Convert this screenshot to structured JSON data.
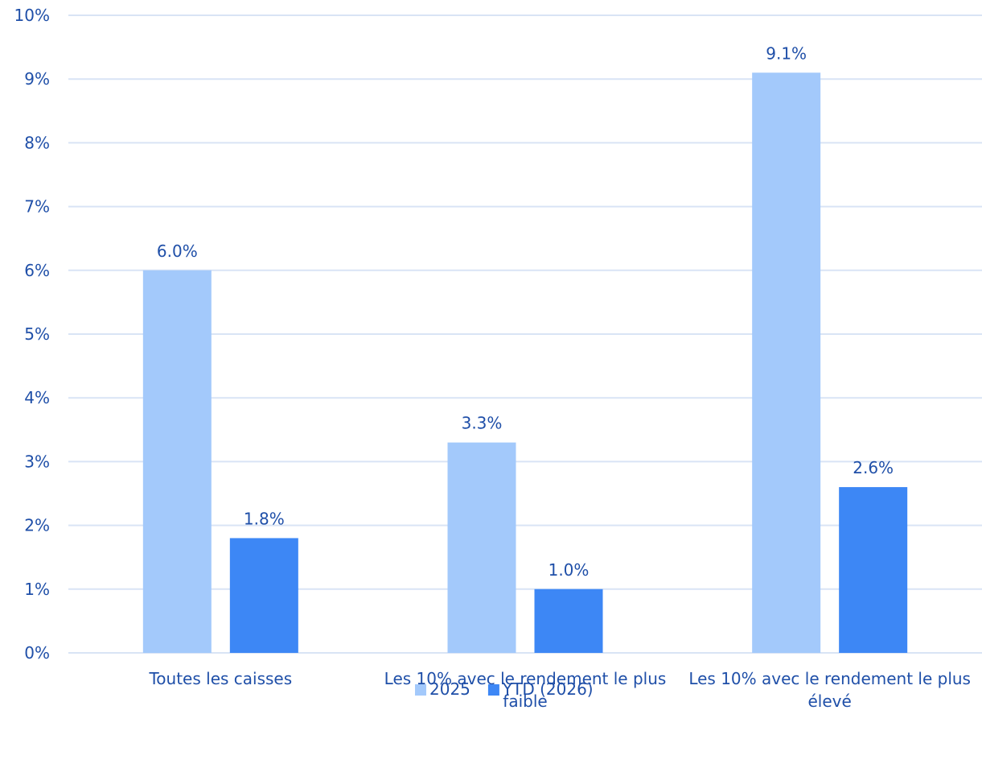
{
  "chart_data": {
    "type": "bar",
    "categories": [
      [
        "Toutes les caisses"
      ],
      [
        "Les 10% avec le rendement le plus",
        "faible"
      ],
      [
        "Les 10% avec le rendement le plus",
        "élevé"
      ]
    ],
    "series": [
      {
        "name": "2025",
        "values": [
          6.0,
          3.3,
          9.1
        ],
        "labels": [
          "6.0%",
          "3.3%",
          "9.1%"
        ],
        "color": "#a3c9fb"
      },
      {
        "name": "YTD (2026)",
        "values": [
          1.8,
          1.0,
          2.6
        ],
        "labels": [
          "1.8%",
          "1.0%",
          "2.6%"
        ],
        "color": "#3d87f5"
      }
    ],
    "ylim": [
      0,
      10
    ],
    "yticks": [
      0,
      1,
      2,
      3,
      4,
      5,
      6,
      7,
      8,
      9,
      10
    ],
    "ytick_labels": [
      "0%",
      "1%",
      "2%",
      "3%",
      "4%",
      "5%",
      "6%",
      "7%",
      "8%",
      "9%",
      "10%"
    ],
    "grid": true,
    "legend_position": "bottom",
    "text_color": "#1f4fa8",
    "grid_color": "#d9e4f5"
  }
}
